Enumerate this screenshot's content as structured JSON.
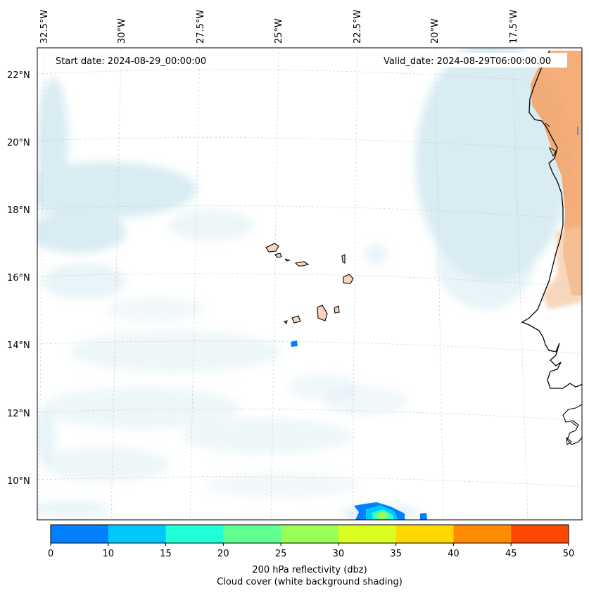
{
  "map": {
    "region": "Eastern tropical Atlantic / Cape Verde",
    "start_date_label": "Start date: 2024-08-29_00:00:00",
    "valid_date_label": "Valid_date: 2024-08-29T06:00:00.00",
    "longitude_labels": [
      "32.5°W",
      "30°W",
      "27.5°W",
      "25°W",
      "22.5°W",
      "20°W",
      "17.5°W"
    ],
    "latitude_labels": [
      "22°N",
      "20°N",
      "18°N",
      "16°N",
      "14°N",
      "12°N",
      "10°N"
    ],
    "gridlines": "dashed light grey"
  },
  "colorbar": {
    "ticks": [
      "0",
      "10",
      "15",
      "20",
      "25",
      "30",
      "35",
      "40",
      "45",
      "50"
    ],
    "colors": [
      "#0080ff",
      "#00c8ff",
      "#20ffd8",
      "#60ff90",
      "#98ff58",
      "#d8ff20",
      "#ffd800",
      "#ff8c00",
      "#ff4800"
    ],
    "label_line1": "200 hPa reflectivity (dbz)",
    "label_line2": "Cloud cover (white background shading)"
  },
  "colors": {
    "cloud": "#b9dde8",
    "land_hot": "#f4a46a",
    "coast": "#000000",
    "island_fill": "#f8d5bd"
  }
}
